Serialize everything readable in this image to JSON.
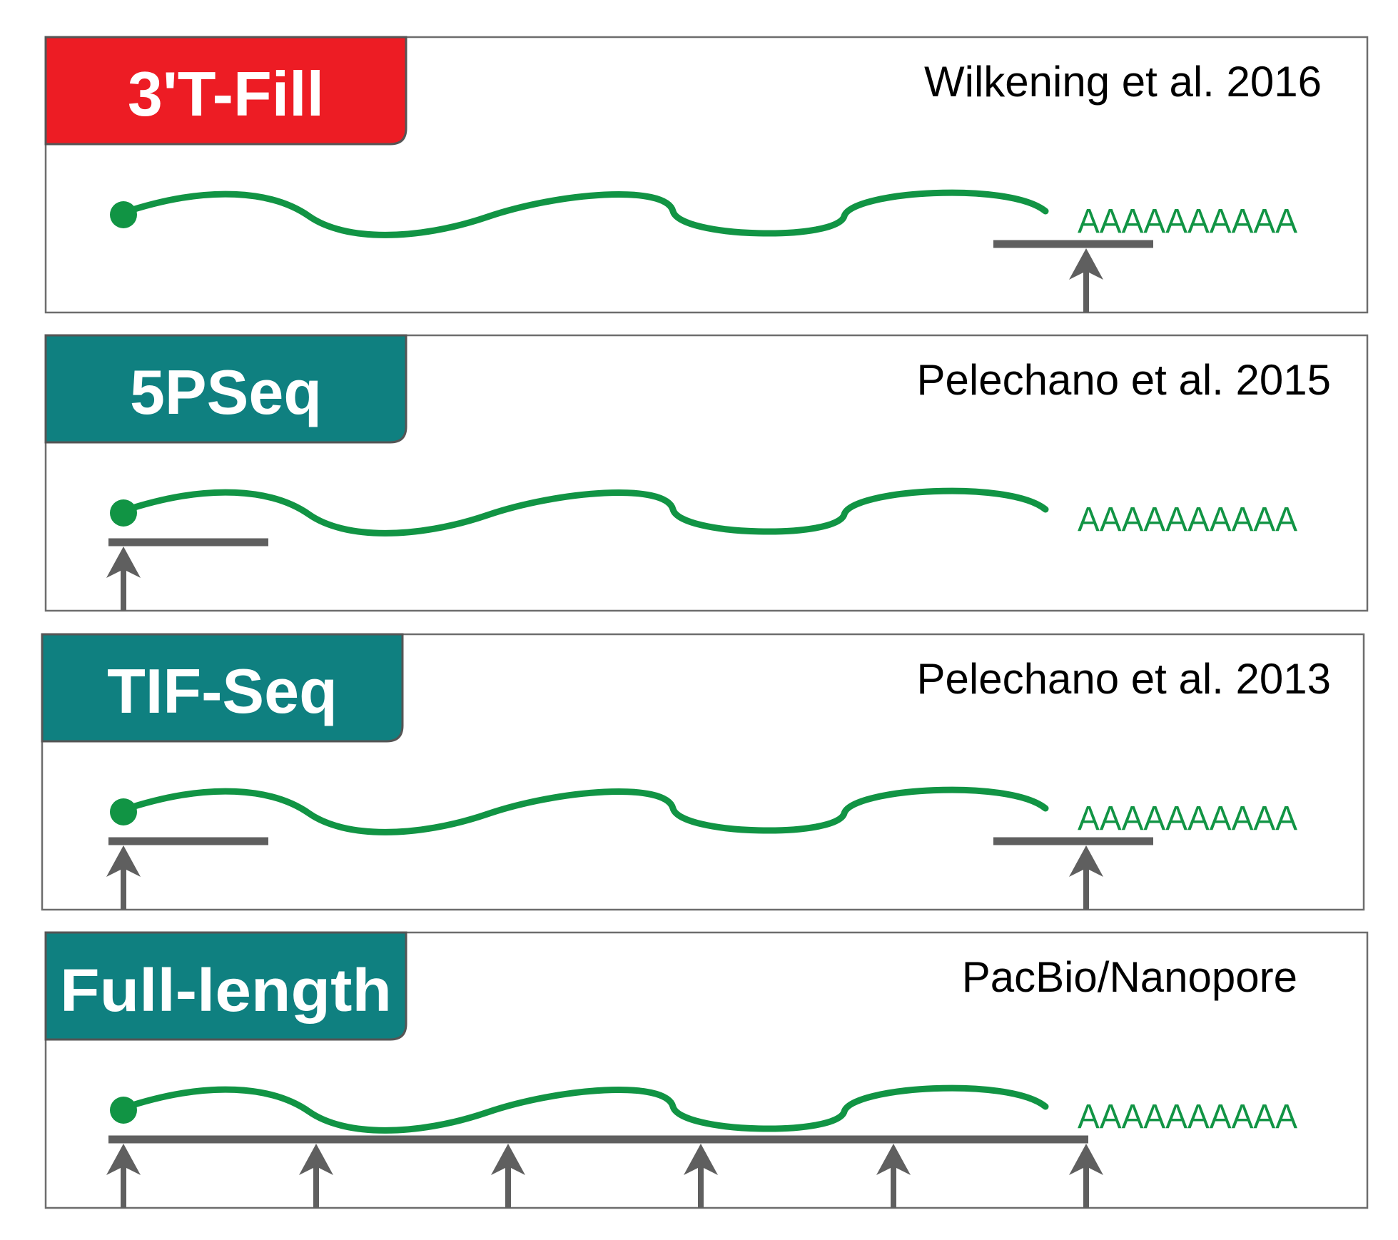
{
  "colors": {
    "red_tab": "#ED1C24",
    "teal_tab": "#0F8080",
    "rna": "#119444",
    "adapter": "#5F5F5F",
    "border": "#6D6D6D"
  },
  "panels": [
    {
      "label": "3'T-Fill",
      "citation": "Wilkening et al. 2016",
      "tab_color": "red",
      "polyA": "AAAAAAAAAA",
      "reads": [
        "3prime"
      ]
    },
    {
      "label": "5PSeq",
      "citation": "Pelechano et al. 2015",
      "tab_color": "teal",
      "polyA": "AAAAAAAAAA",
      "reads": [
        "5prime"
      ]
    },
    {
      "label": "TIF-Seq",
      "citation": "Pelechano et al. 2013",
      "tab_color": "teal",
      "polyA": "AAAAAAAAAA",
      "reads": [
        "5prime",
        "3prime"
      ]
    },
    {
      "label": "Full-length",
      "citation": "PacBio/Nanopore",
      "tab_color": "teal",
      "polyA": "AAAAAAAAAA",
      "reads": [
        "full"
      ]
    }
  ]
}
